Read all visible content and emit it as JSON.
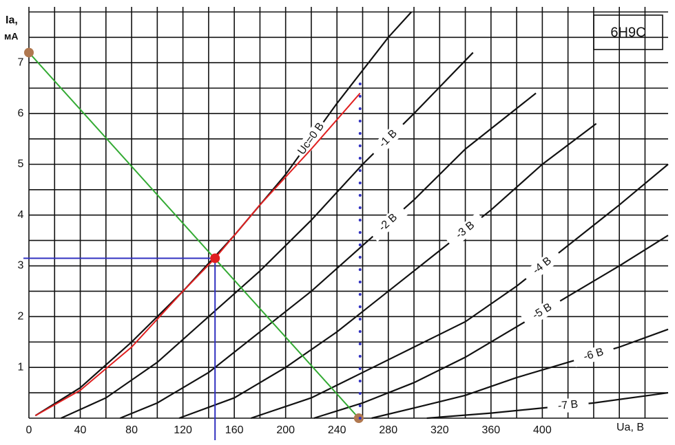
{
  "chart_data": {
    "type": "line",
    "title": "6H9C",
    "ylabel": "Ia,",
    "yunit": "мА",
    "xlabel": "Ua, B",
    "xlim": [
      0,
      498
    ],
    "ylim": [
      0,
      8.1
    ],
    "xticks": [
      0,
      40,
      80,
      120,
      160,
      200,
      240,
      280,
      320,
      360,
      400
    ],
    "yticks": [
      1,
      2,
      3,
      4,
      5,
      6,
      7
    ],
    "xgrid": [
      0,
      20,
      40,
      60,
      80,
      100,
      120,
      140,
      160,
      180,
      200,
      220,
      240,
      260,
      280,
      300,
      320,
      340,
      360,
      380,
      400,
      420,
      440,
      460,
      480
    ],
    "ygrid": [
      0,
      0.5,
      1,
      1.5,
      2,
      2.5,
      3,
      3.5,
      4,
      4.5,
      5,
      5.5,
      6,
      6.5,
      7,
      7.5,
      8
    ],
    "series": [
      {
        "name": "Uc=0 B",
        "color": "#111111",
        "x": [
          5,
          40,
          80,
          120,
          160,
          200,
          240,
          280,
          298
        ],
        "values": [
          0.05,
          0.6,
          1.5,
          2.5,
          3.6,
          4.8,
          6.2,
          7.5,
          8.0
        ]
      },
      {
        "name": "-1 B",
        "color": "#111111",
        "x": [
          25,
          60,
          100,
          140,
          180,
          220,
          260,
          300,
          346
        ],
        "values": [
          0,
          0.4,
          1.1,
          2.0,
          2.9,
          3.9,
          5.0,
          6.0,
          7.2
        ]
      },
      {
        "name": "-2 B",
        "color": "#111111",
        "x": [
          71,
          100,
          140,
          180,
          220,
          260,
          300,
          340,
          395
        ],
        "values": [
          0,
          0.3,
          0.9,
          1.7,
          2.5,
          3.4,
          4.3,
          5.3,
          6.4
        ]
      },
      {
        "name": "-3 B",
        "color": "#111111",
        "x": [
          117,
          160,
          200,
          240,
          280,
          320,
          360,
          400,
          442
        ],
        "values": [
          0,
          0.4,
          1.0,
          1.7,
          2.5,
          3.3,
          4.1,
          5.0,
          5.8
        ]
      },
      {
        "name": "-4 B",
        "color": "#111111",
        "x": [
          173,
          220,
          260,
          300,
          340,
          380,
          420,
          460,
          498
        ],
        "values": [
          0,
          0.4,
          0.9,
          1.4,
          1.9,
          2.6,
          3.4,
          4.2,
          5.0
        ]
      },
      {
        "name": "-5 B",
        "color": "#111111",
        "x": [
          222,
          260,
          300,
          340,
          380,
          420,
          460,
          498
        ],
        "values": [
          0,
          0.3,
          0.7,
          1.2,
          1.8,
          2.4,
          3.0,
          3.6
        ]
      },
      {
        "name": "-6 B",
        "color": "#111111",
        "x": [
          267,
          300,
          340,
          380,
          420,
          460,
          498
        ],
        "values": [
          0,
          0.2,
          0.45,
          0.8,
          1.1,
          1.4,
          1.75
        ]
      },
      {
        "name": "-7 B",
        "color": "#111111",
        "x": [
          310,
          360,
          400,
          440,
          498
        ],
        "values": [
          0,
          0.1,
          0.2,
          0.3,
          0.5
        ]
      }
    ],
    "measured": {
      "color": "#e02020",
      "x": [
        5,
        40,
        80,
        120,
        145,
        180,
        220,
        258
      ],
      "values": [
        0.05,
        0.55,
        1.4,
        2.5,
        3.15,
        4.2,
        5.3,
        6.4
      ]
    },
    "load_line": {
      "color": "#33aa33",
      "x": [
        0,
        257
      ],
      "values": [
        7.2,
        0
      ]
    },
    "operating_point": {
      "color": "#e02020",
      "x": 145,
      "y": 3.15,
      "guide_color": "#3030c0"
    },
    "anode_voltage": {
      "color": "#3030c0",
      "x": 258,
      "values": [
        0,
        6.7
      ]
    }
  }
}
